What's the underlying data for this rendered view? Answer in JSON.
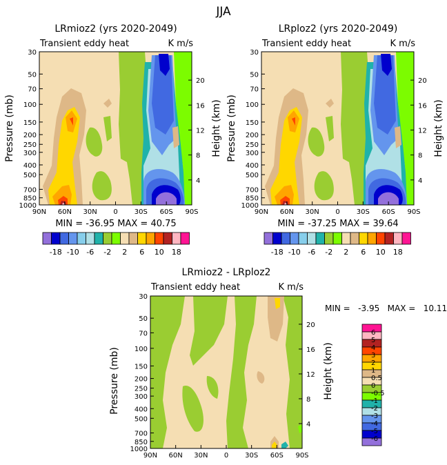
{
  "figure_title": "JJA",
  "colors": {
    "scale": [
      "#9370db",
      "#0000cd",
      "#4169e1",
      "#6495ed",
      "#87ceeb",
      "#b0e0e6",
      "#20b2aa",
      "#9acd32",
      "#7cfc00",
      "#f5deb3",
      "#deb887",
      "#ffd700",
      "#ffa500",
      "#ff4500",
      "#b22222",
      "#ffb6c1",
      "#ff1493"
    ]
  },
  "chart_data": [
    {
      "type": "contour",
      "title": "LRmioz2 (yrs 2020-2049)",
      "subtitle": "Transient eddy heat",
      "units": "K m/s",
      "x_ticks": [
        "90N",
        "60N",
        "30N",
        "0",
        "30S",
        "60S",
        "90S"
      ],
      "y_ticks": [
        "30",
        "50",
        "70",
        "100",
        "150",
        "200",
        "250",
        "300",
        "400",
        "500",
        "700",
        "850",
        "1000"
      ],
      "ylabel": "Pressure (mb)",
      "y2label": "Height (km)",
      "y2_ticks": [
        "20",
        "16",
        "12",
        "8",
        "4"
      ],
      "stats": "MIN = -36.95   MAX = 40.75",
      "min": -36.95,
      "max": 40.75,
      "colorbar_labels": [
        "-18",
        "-10",
        "-6",
        "-2",
        "2",
        "6",
        "10",
        "18"
      ]
    },
    {
      "type": "contour",
      "title": "LRploz2 (yrs 2020-2049)",
      "subtitle": "Transient eddy heat",
      "units": "K m/s",
      "x_ticks": [
        "90N",
        "60N",
        "30N",
        "0",
        "30S",
        "60S",
        "90S"
      ],
      "y_ticks": [
        "30",
        "50",
        "70",
        "100",
        "150",
        "200",
        "250",
        "300",
        "400",
        "500",
        "700",
        "850",
        "1000"
      ],
      "ylabel": "Pressure (mb)",
      "y2label": "Height (km)",
      "y2_ticks": [
        "20",
        "16",
        "12",
        "8",
        "4"
      ],
      "stats": "MIN = -37.25   MAX = 39.64",
      "min": -37.25,
      "max": 39.64,
      "colorbar_labels": [
        "-18",
        "-10",
        "-6",
        "-2",
        "2",
        "6",
        "10",
        "18"
      ]
    },
    {
      "type": "contour",
      "title": "LRmioz2 - LRploz2",
      "subtitle": "Transient eddy heat",
      "units": "K m/s",
      "x_ticks": [
        "90N",
        "60N",
        "30N",
        "0",
        "30S",
        "60S",
        "90S"
      ],
      "y_ticks": [
        "30",
        "50",
        "70",
        "100",
        "150",
        "200",
        "250",
        "300",
        "400",
        "500",
        "700",
        "850",
        "1000"
      ],
      "ylabel": "Pressure (mb)",
      "y2label": "Height (km)",
      "y2_ticks": [
        "20",
        "16",
        "12",
        "8",
        "4"
      ],
      "stats": "MIN =   -3.95   MAX =   10.11",
      "min": -3.95,
      "max": 10.11,
      "colorbar_labels": [
        "6",
        "5",
        "4",
        "3",
        "2",
        "1",
        "0.5",
        "0",
        "-0.5",
        "-1",
        "-2",
        "-3",
        "-4",
        "-5",
        "-6"
      ],
      "colorbar_colors": [
        "#ff1493",
        "#ffb6c1",
        "#b22222",
        "#ff4500",
        "#ffa500",
        "#ffd700",
        "#deb887",
        "#f5deb3",
        "#9acd32",
        "#7cfc00",
        "#20b2aa",
        "#b0e0e6",
        "#6495ed",
        "#4169e1",
        "#0000cd",
        "#9370db"
      ]
    }
  ]
}
